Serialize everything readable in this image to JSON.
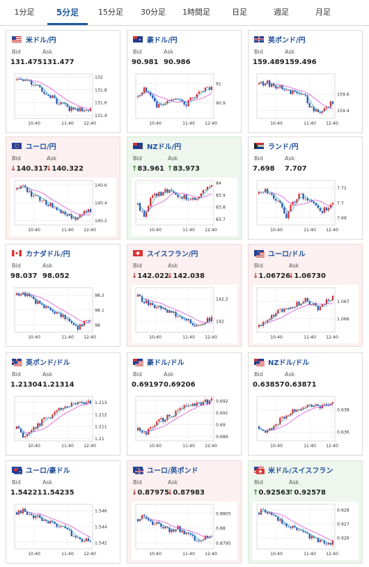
{
  "tabs": [
    {
      "label": "1分足"
    },
    {
      "label": "5分足"
    },
    {
      "label": "15分足"
    },
    {
      "label": "30分足"
    },
    {
      "label": "1時間足"
    },
    {
      "label": "日足"
    },
    {
      "label": "週足"
    },
    {
      "label": "月足"
    }
  ],
  "active_tab": "5分足",
  "bid_label": "Bid",
  "ask_label": "Ask",
  "colors": {
    "up_candle": "#d42a2a",
    "down_candle": "#1f4fa8",
    "ma_short": "#32a7c8",
    "ma_long": "#d84fd8",
    "down_arrow": "#c03030",
    "up_arrow": "#2d8a2d"
  },
  "cards": [
    {
      "pair": "米ドル/円",
      "bid": "131.475",
      "ask": "131.477",
      "dir": "none",
      "bg": "neutral",
      "flag": "us-flag-icon",
      "x_ticks": [
        "10:40",
        "11:40",
        "12:40"
      ],
      "y_ticks": [
        "132",
        "131.8",
        "131.6",
        "131.4"
      ],
      "ylim": [
        131.35,
        132.05
      ],
      "trend": [
        131.95,
        131.98,
        131.9,
        131.85,
        131.78,
        131.7,
        131.62,
        131.55,
        131.5,
        131.48,
        131.5,
        131.47
      ]
    },
    {
      "pair": "豪ドル/円",
      "bid": "90.981",
      "ask": "90.986",
      "dir": "none",
      "bg": "neutral",
      "flag": "au-flag-icon",
      "x_ticks": [
        "10:40",
        "11:40",
        "12:40"
      ],
      "y_ticks": [
        "91",
        "90.9"
      ],
      "ylim": [
        90.82,
        91.05
      ],
      "trend": [
        90.93,
        90.98,
        90.92,
        90.88,
        90.9,
        90.93,
        90.91,
        90.89,
        90.92,
        90.95,
        90.97,
        90.98
      ]
    },
    {
      "pair": "英ポンド/円",
      "bid": "159.489",
      "ask": "159.496",
      "dir": "none",
      "bg": "neutral",
      "flag": "gb-flag-icon",
      "x_ticks": [
        "10:40",
        "11:40",
        "12:40"
      ],
      "y_ticks": [
        "159.6",
        "159.4"
      ],
      "ylim": [
        159.3,
        159.85
      ],
      "trend": [
        159.72,
        159.75,
        159.7,
        159.68,
        159.65,
        159.62,
        159.6,
        159.55,
        159.4,
        159.38,
        159.45,
        159.49
      ]
    },
    {
      "pair": "ユーロ/円",
      "bid": "140.317",
      "ask": "140.322",
      "dir": "down",
      "bg": "down",
      "flag": "eu-flag-icon",
      "x_ticks": [
        "10:40",
        "11:40",
        "12:40"
      ],
      "y_ticks": [
        "140.6",
        "140.4",
        "140.2"
      ],
      "ylim": [
        140.15,
        140.65
      ],
      "trend": [
        140.55,
        140.58,
        140.5,
        140.45,
        140.42,
        140.38,
        140.33,
        140.3,
        140.25,
        140.22,
        140.28,
        140.32
      ]
    },
    {
      "pair": "NZドル/円",
      "bid": "83.961",
      "ask": "83.973",
      "dir": "up",
      "bg": "up",
      "flag": "nz-flag-icon",
      "x_ticks": [
        "10:40",
        "11:40",
        "12:40"
      ],
      "y_ticks": [
        "84",
        "83.9",
        "83.8",
        "83.7"
      ],
      "ylim": [
        83.65,
        84.02
      ],
      "trend": [
        83.82,
        83.72,
        83.88,
        83.9,
        83.93,
        83.92,
        83.9,
        83.88,
        83.85,
        83.9,
        83.94,
        83.97
      ]
    },
    {
      "pair": "ランド/円",
      "bid": "7.698",
      "ask": "7.707",
      "dir": "none",
      "bg": "neutral",
      "flag": "za-flag-icon",
      "x_ticks": [
        "10:40",
        "11:40",
        "12:40"
      ],
      "y_ticks": [
        "7.71",
        "7.7",
        "7.69"
      ],
      "ylim": [
        7.685,
        7.715
      ],
      "trend": [
        7.706,
        7.708,
        7.704,
        7.7,
        7.69,
        7.7,
        7.705,
        7.703,
        7.7,
        7.694,
        7.696,
        7.7
      ]
    },
    {
      "pair": "カナダドル/円",
      "bid": "98.037",
      "ask": "98.052",
      "dir": "none",
      "bg": "neutral",
      "flag": "ca-flag-icon",
      "x_ticks": [
        "10:40",
        "11:40",
        "12:40"
      ],
      "y_ticks": [
        "98.2",
        "98.1",
        "98"
      ],
      "ylim": [
        97.95,
        98.25
      ],
      "trend": [
        98.2,
        98.22,
        98.18,
        98.15,
        98.12,
        98.1,
        98.08,
        98.05,
        98.02,
        97.98,
        98.02,
        98.04
      ]
    },
    {
      "pair": "スイスフラン/円",
      "bid": "142.022",
      "ask": "142.038",
      "dir": "down",
      "bg": "down",
      "flag": "ch-flag-icon",
      "x_ticks": [
        "10:40",
        "11:40",
        "12:40"
      ],
      "y_ticks": [
        "142.2",
        "142"
      ],
      "ylim": [
        141.9,
        142.3
      ],
      "trend": [
        142.22,
        142.18,
        142.15,
        142.12,
        142.1,
        142.08,
        142.05,
        142.02,
        141.98,
        141.96,
        142.0,
        142.02
      ]
    },
    {
      "pair": "ユーロ/ドル",
      "bid": "1.06726",
      "ask": "1.06730",
      "dir": "down",
      "bg": "down",
      "flag": "eu-us-flag-icon",
      "x_ticks": [
        "10:40",
        "11:40",
        "12:40"
      ],
      "y_ticks": [
        "1.067",
        "1.066"
      ],
      "ylim": [
        1.0652,
        1.0678
      ],
      "trend": [
        1.0655,
        1.0658,
        1.0662,
        1.0664,
        1.0665,
        1.0667,
        1.0669,
        1.0671,
        1.0668,
        1.0665,
        1.067,
        1.0673
      ]
    },
    {
      "pair": "英ポンド/ドル",
      "bid": "1.21304",
      "ask": "1.21314",
      "dir": "none",
      "bg": "neutral",
      "flag": "gb-us-flag-icon",
      "x_ticks": [
        "10:40",
        "11:40",
        "12:40"
      ],
      "y_ticks": [
        "1.213",
        "1.212",
        "1.211",
        "1.21"
      ],
      "ylim": [
        1.2098,
        1.2135
      ],
      "trend": [
        1.2108,
        1.2102,
        1.2105,
        1.211,
        1.2115,
        1.2118,
        1.2122,
        1.2126,
        1.2128,
        1.2131,
        1.2129,
        1.213
      ]
    },
    {
      "pair": "豪ドル/ドル",
      "bid": "0.69197",
      "ask": "0.69206",
      "dir": "none",
      "bg": "neutral",
      "flag": "au-us-flag-icon",
      "x_ticks": [
        "10:40",
        "11:40",
        "12:40"
      ],
      "y_ticks": [
        "0.692",
        "0.691",
        "0.69",
        "0.689"
      ],
      "ylim": [
        0.6886,
        0.6924
      ],
      "trend": [
        0.6895,
        0.6892,
        0.6898,
        0.6902,
        0.6905,
        0.6908,
        0.6912,
        0.6915,
        0.6918,
        0.6917,
        0.6919,
        0.692
      ]
    },
    {
      "pair": "NZドル/ドル",
      "bid": "0.63857",
      "ask": "0.63871",
      "dir": "none",
      "bg": "neutral",
      "flag": "nz-us-flag-icon",
      "x_ticks": [
        "10:40",
        "11:40",
        "12:40"
      ],
      "y_ticks": [
        "0.638",
        "0.636"
      ],
      "ylim": [
        0.6352,
        0.6392
      ],
      "trend": [
        0.6365,
        0.636,
        0.6362,
        0.637,
        0.6375,
        0.6378,
        0.638,
        0.6383,
        0.6385,
        0.6382,
        0.6384,
        0.6386
      ]
    },
    {
      "pair": "ユーロ/豪ドル",
      "bid": "1.54221",
      "ask": "1.54235",
      "dir": "none",
      "bg": "neutral",
      "flag": "eu-au-flag-icon",
      "x_ticks": [
        "10:40",
        "11:40",
        "12:40"
      ],
      "y_ticks": [
        "1.546",
        "1.544",
        "1.542"
      ],
      "ylim": [
        1.5412,
        1.5468
      ],
      "trend": [
        1.5458,
        1.546,
        1.5455,
        1.5452,
        1.5448,
        1.5445,
        1.5442,
        1.5438,
        1.5432,
        1.5425,
        1.5424,
        1.5422
      ]
    },
    {
      "pair": "ユーロ/英ポンド",
      "bid": "0.87975",
      "ask": "0.87983",
      "dir": "down",
      "bg": "down",
      "flag": "eu-gb-flag-icon",
      "x_ticks": [
        "10:40",
        "11:40",
        "12:40"
      ],
      "y_ticks": [
        "0.8805",
        "0.88",
        "0.8795"
      ],
      "ylim": [
        0.8793,
        0.8808
      ],
      "trend": [
        0.8803,
        0.8804,
        0.8802,
        0.8801,
        0.88,
        0.8799,
        0.88,
        0.8798,
        0.8797,
        0.8796,
        0.8797,
        0.8798
      ]
    },
    {
      "pair": "米ドル/スイスフラン",
      "bid": "0.92563",
      "ask": "0.92578",
      "dir": "up",
      "bg": "up",
      "flag": "us-ch-flag-icon",
      "x_ticks": [
        "10:40",
        "11:40",
        "12:40"
      ],
      "y_ticks": [
        "0.928",
        "0.927",
        "0.926"
      ],
      "ylim": [
        0.9252,
        0.9284
      ],
      "trend": [
        0.9278,
        0.928,
        0.9276,
        0.9272,
        0.927,
        0.9268,
        0.9265,
        0.9262,
        0.926,
        0.9258,
        0.9256,
        0.9257
      ]
    }
  ]
}
